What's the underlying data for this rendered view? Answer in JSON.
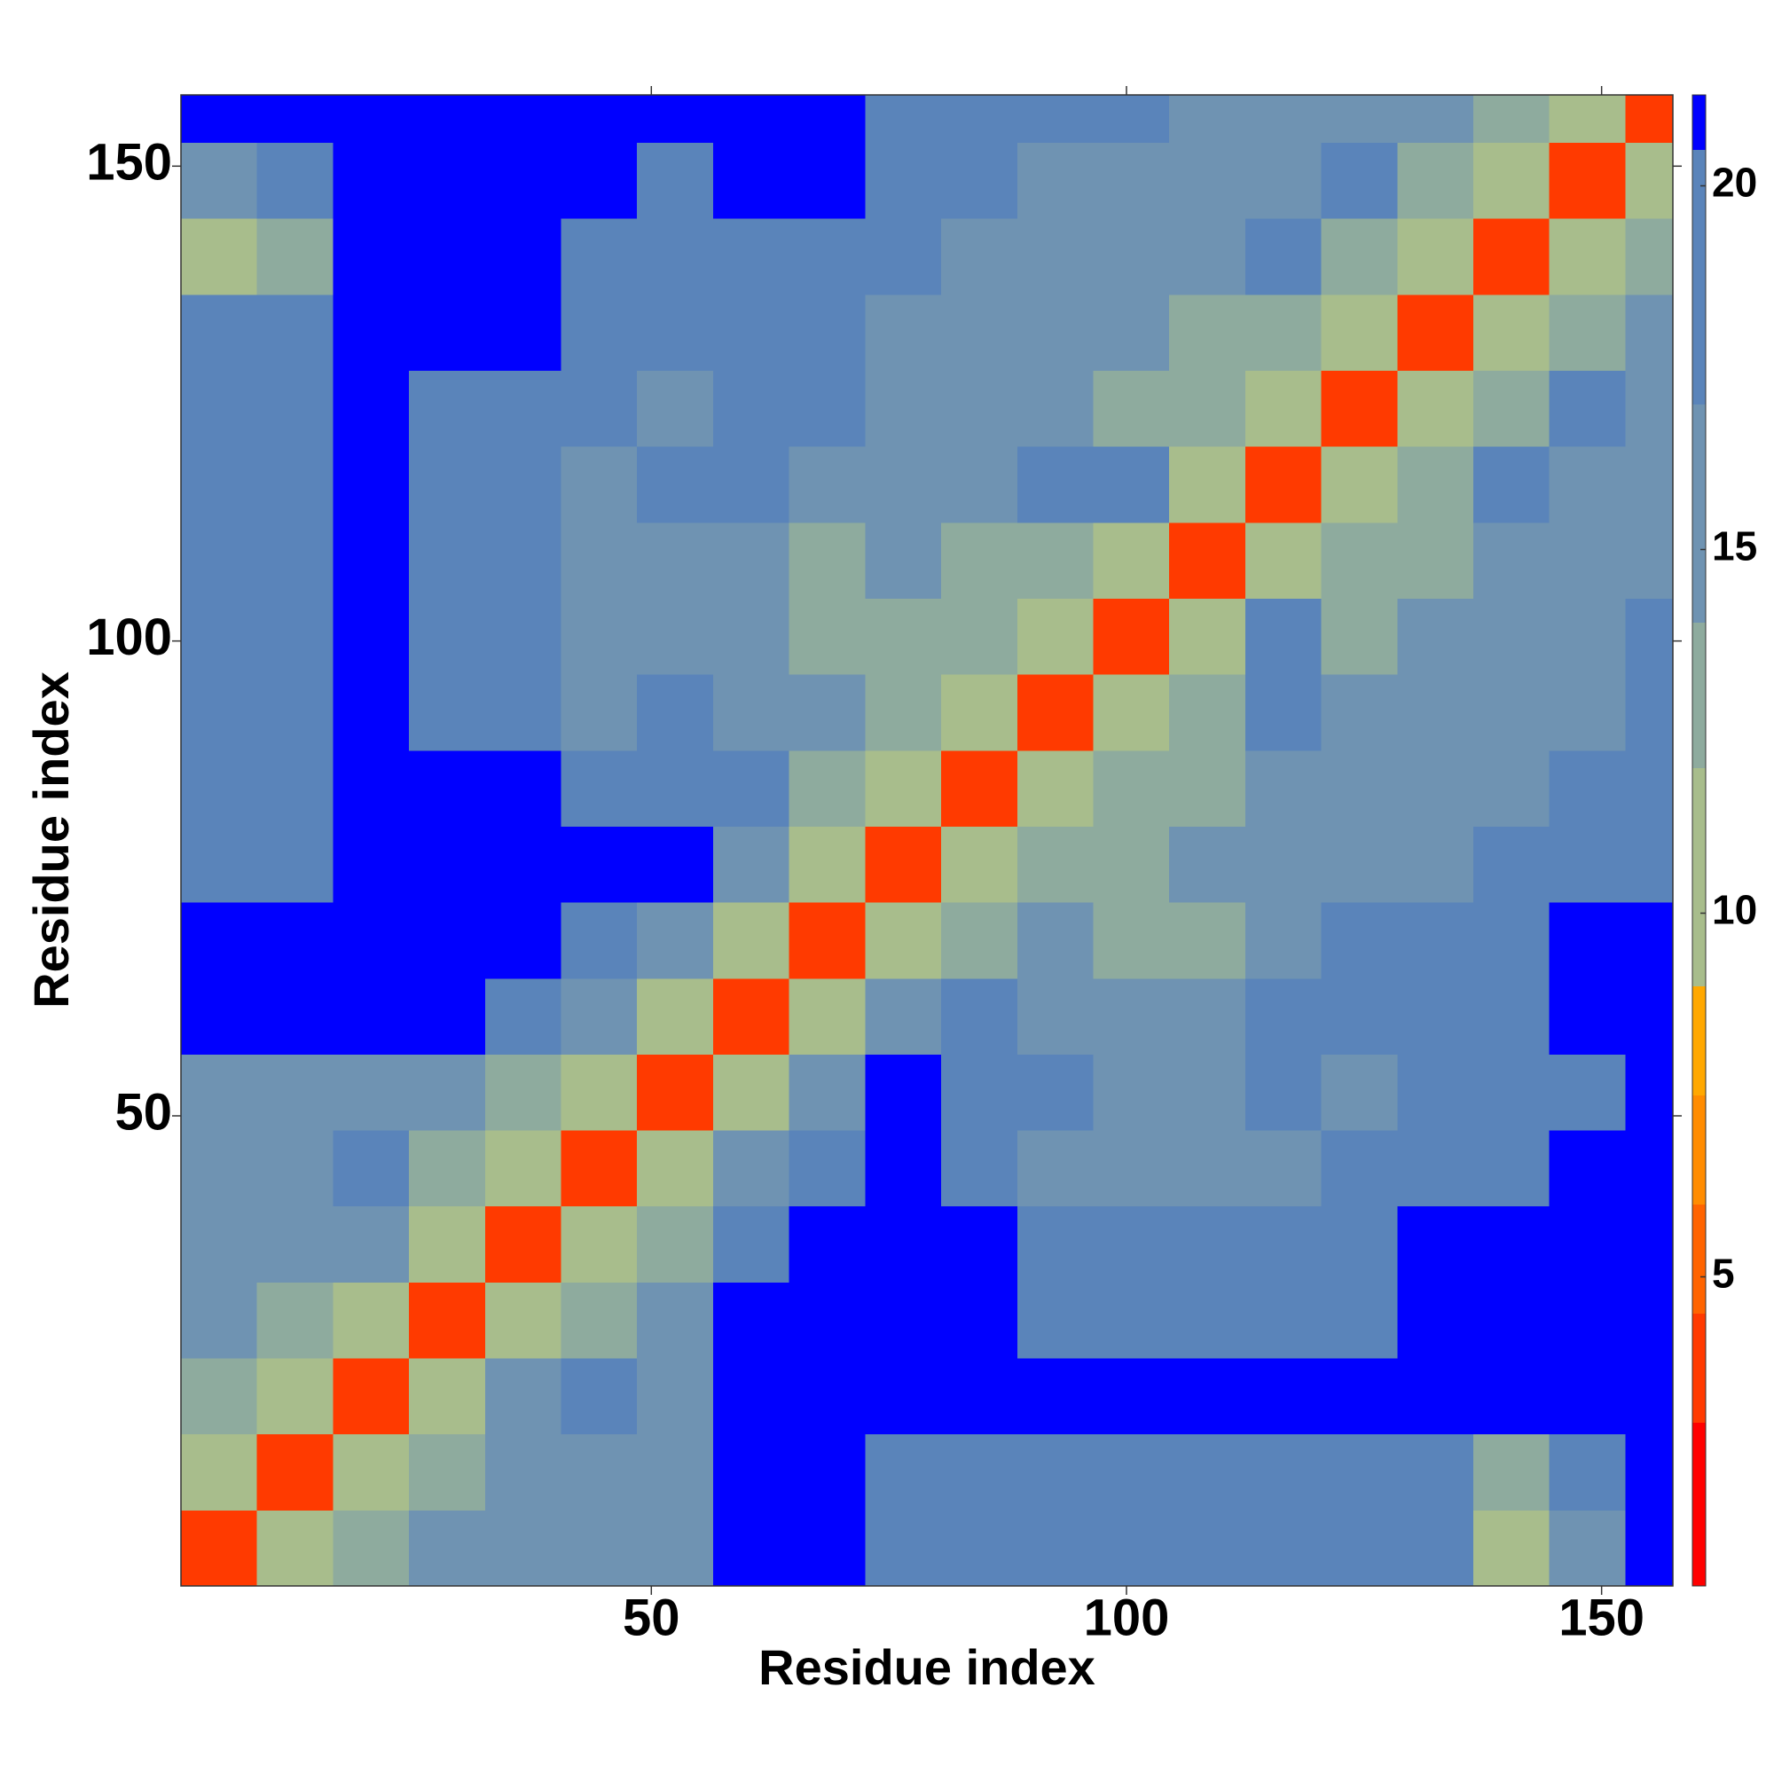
{
  "chart_data": {
    "type": "heatmap",
    "xlabel": "Residue index",
    "ylabel": "Residue index",
    "xbins": [
      0.5,
      8.5,
      16.5,
      24.5,
      32.5,
      40.5,
      48.5,
      56.5,
      64.5,
      72.5,
      80.5,
      88.5,
      96.5,
      104.5,
      112.5,
      120.5,
      128.5,
      136.5,
      144.5,
      152.5,
      157.5
    ],
    "ybins": [
      0.5,
      8.5,
      16.5,
      24.5,
      32.5,
      40.5,
      48.5,
      56.5,
      64.5,
      72.5,
      80.5,
      88.5,
      96.5,
      104.5,
      112.5,
      120.5,
      128.5,
      136.5,
      144.5,
      152.5,
      157.5
    ],
    "z": [
      [
        4,
        10,
        13,
        15,
        16,
        15,
        16,
        21,
        21,
        20,
        20,
        20,
        20,
        20,
        20,
        19,
        19,
        12,
        17,
        21
      ],
      [
        10,
        4,
        10,
        13,
        15,
        16,
        16,
        21,
        21,
        20,
        20,
        20,
        20,
        20,
        20,
        20,
        19,
        14,
        18,
        21
      ],
      [
        13,
        10,
        4,
        10,
        17,
        18,
        15,
        21,
        21,
        21,
        21,
        21,
        21,
        21,
        21,
        21,
        21,
        21,
        21,
        21
      ],
      [
        15,
        13,
        10,
        4,
        10,
        13,
        15,
        21,
        21,
        21,
        21,
        20,
        20,
        20,
        20,
        20,
        21,
        21,
        21,
        21
      ],
      [
        16,
        15,
        17,
        10,
        4,
        10,
        13,
        19,
        21,
        21,
        21,
        19,
        19,
        19,
        20,
        19,
        21,
        21,
        21,
        21
      ],
      [
        15,
        16,
        18,
        13,
        10,
        4,
        10,
        15,
        20,
        21,
        20,
        16,
        17,
        17,
        17,
        18,
        18,
        19,
        21,
        21
      ],
      [
        16,
        16,
        15,
        15,
        13,
        10,
        4,
        10,
        16,
        21,
        19,
        18,
        17,
        17,
        18,
        17,
        18,
        18,
        20,
        21
      ],
      [
        21,
        21,
        21,
        21,
        19,
        15,
        10,
        4,
        10,
        16,
        19,
        17,
        15,
        15,
        18,
        19,
        19,
        20,
        21,
        21
      ],
      [
        21,
        21,
        21,
        21,
        21,
        20,
        16,
        10,
        4,
        10,
        14,
        15,
        14,
        14,
        17,
        18,
        18,
        20,
        21,
        21
      ],
      [
        20,
        20,
        21,
        21,
        21,
        21,
        21,
        16,
        10,
        4,
        10,
        13,
        14,
        15,
        16,
        16,
        17,
        19,
        20,
        20
      ],
      [
        20,
        20,
        21,
        21,
        21,
        20,
        19,
        19,
        14,
        10,
        4,
        10,
        13,
        14,
        15,
        16,
        17,
        17,
        18,
        19
      ],
      [
        20,
        20,
        21,
        20,
        19,
        16,
        18,
        17,
        15,
        13,
        10,
        4,
        10,
        13,
        19,
        15,
        16,
        17,
        17,
        18
      ],
      [
        20,
        20,
        21,
        20,
        19,
        17,
        17,
        15,
        14,
        14,
        13,
        10,
        4,
        10,
        18,
        14,
        15,
        16,
        17,
        18
      ],
      [
        20,
        20,
        21,
        20,
        19,
        17,
        17,
        15,
        14,
        15,
        14,
        13,
        10,
        4,
        10,
        13,
        14,
        15,
        16,
        17
      ],
      [
        20,
        20,
        21,
        20,
        20,
        17,
        18,
        18,
        17,
        16,
        15,
        19,
        18,
        10,
        4,
        10,
        13,
        19,
        16,
        17
      ],
      [
        19,
        20,
        21,
        20,
        19,
        18,
        17,
        19,
        18,
        16,
        16,
        15,
        14,
        13,
        10,
        4,
        10,
        13,
        18,
        16
      ],
      [
        19,
        19,
        21,
        21,
        21,
        18,
        18,
        19,
        18,
        17,
        17,
        16,
        15,
        14,
        13,
        10,
        4,
        10,
        13,
        15
      ],
      [
        12,
        14,
        21,
        21,
        21,
        19,
        18,
        20,
        20,
        19,
        17,
        17,
        16,
        15,
        19,
        13,
        10,
        4,
        10,
        13
      ],
      [
        17,
        18,
        21,
        21,
        21,
        21,
        20,
        21,
        21,
        20,
        18,
        17,
        17,
        16,
        16,
        18,
        13,
        10,
        4,
        10
      ],
      [
        21,
        21,
        21,
        21,
        21,
        21,
        21,
        21,
        21,
        20,
        19,
        18,
        18,
        17,
        17,
        16,
        15,
        13,
        10,
        4
      ]
    ],
    "xlim": [
      0.5,
      157.5
    ],
    "ylim": [
      0.5,
      157.5
    ],
    "xticks": [
      50,
      100,
      150
    ],
    "yticks": [
      50,
      100,
      150
    ],
    "colorbar": {
      "clim": [
        0.75,
        21.25
      ],
      "ticks": [
        5,
        10,
        15,
        20
      ],
      "levels": [
        3,
        4.5,
        6,
        7.5,
        9,
        12,
        14,
        17,
        20.5
      ],
      "colors": [
        "#ff0000",
        "#ff3a00",
        "#ff6400",
        "#ff8c00",
        "#ffa800",
        "#a8bd8c",
        "#8eab9e",
        "#6f93b2",
        "#5a84ba",
        "#0000ff"
      ]
    }
  }
}
